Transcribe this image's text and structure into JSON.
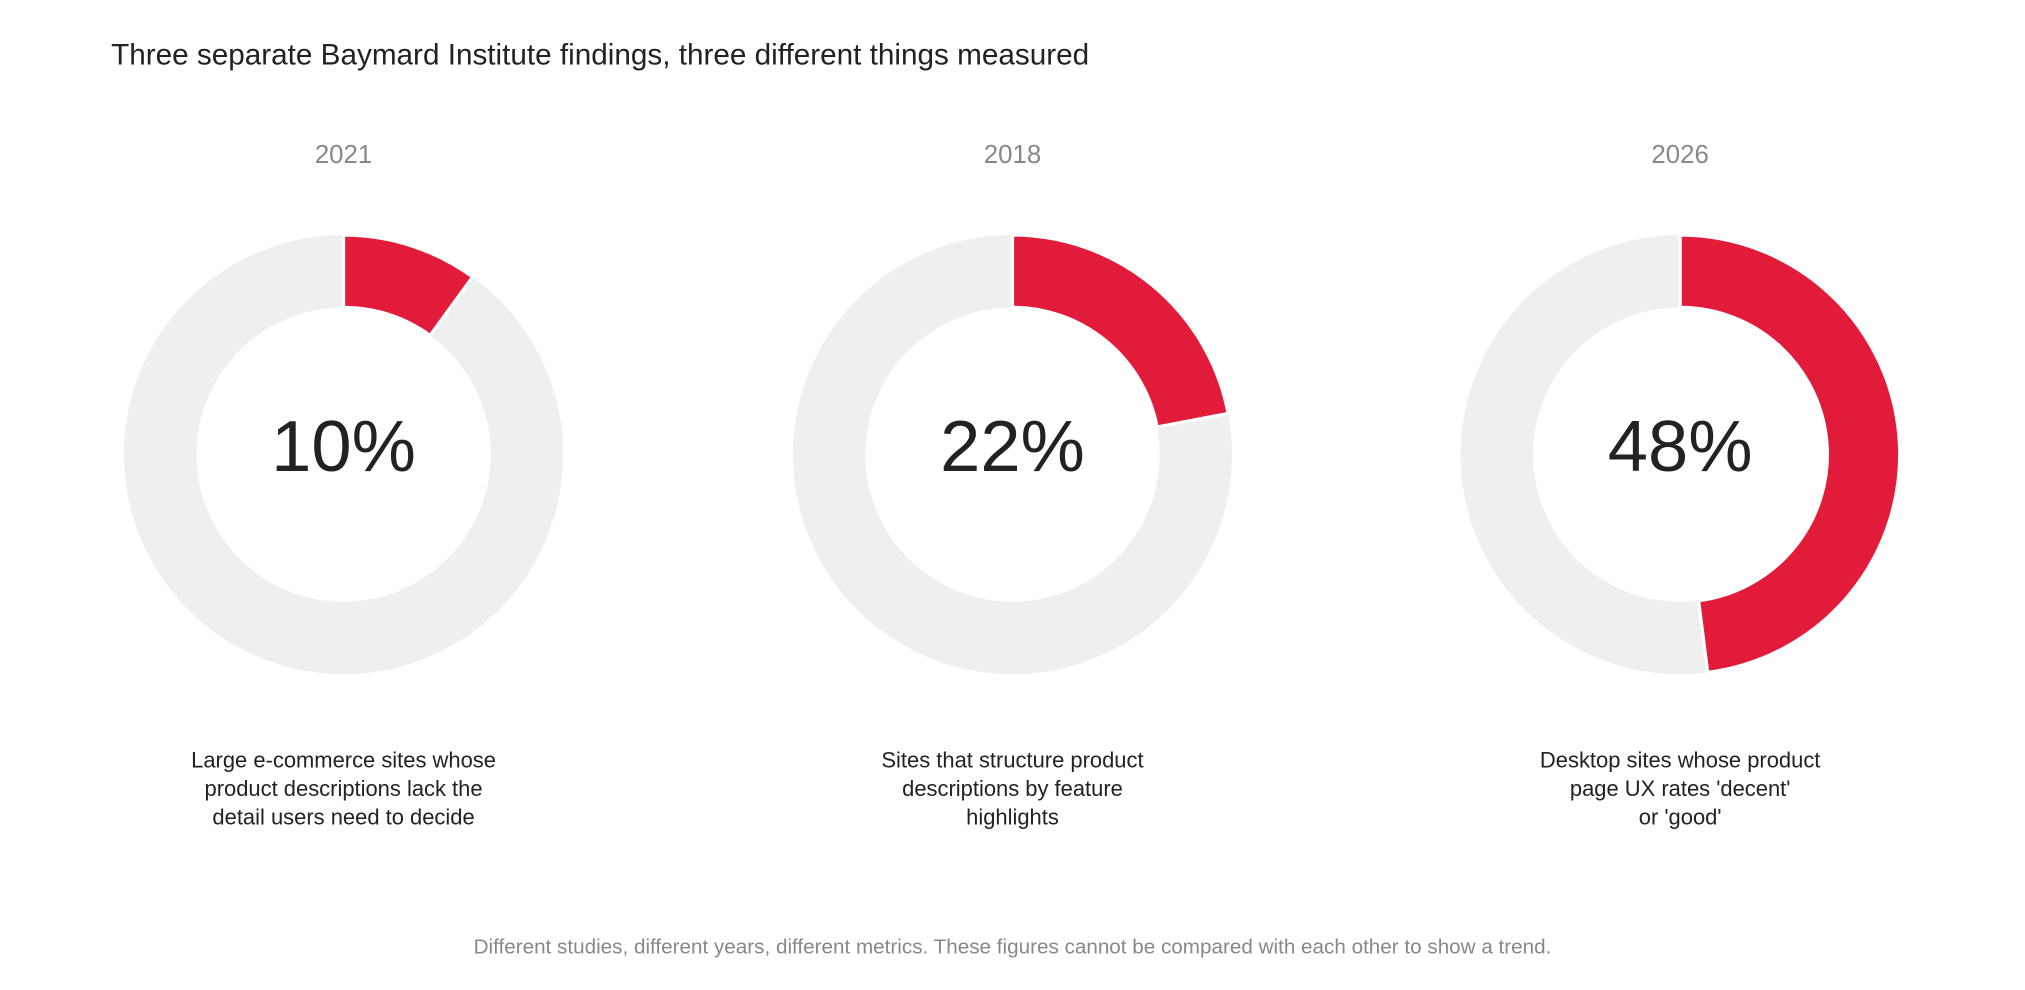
{
  "title": "Three separate Baymard Institute findings, three different things measured",
  "note": "Different studies, different years, different metrics. These figures cannot be compared with each other to show a trend.",
  "chart_data": [
    {
      "type": "donut",
      "title": "2021",
      "values": [
        10
      ],
      "value_labels": [
        "10%"
      ],
      "color": "#e31b3a",
      "caption": [
        "Large e-commerce sites whose",
        "product descriptions lack the",
        "detail users need to decide"
      ]
    },
    {
      "type": "donut",
      "title": "2018",
      "values": [
        22
      ],
      "value_labels": [
        "22%"
      ],
      "color": "#e31b3a",
      "caption": [
        "Sites that structure product",
        "descriptions by feature",
        "highlights"
      ]
    },
    {
      "type": "donut",
      "title": "2026",
      "values": [
        48
      ],
      "value_labels": [
        "48%"
      ],
      "color": "#e31b3a",
      "caption": [
        "Desktop sites whose product",
        "page UX rates 'decent'",
        "or 'good'"
      ]
    }
  ]
}
